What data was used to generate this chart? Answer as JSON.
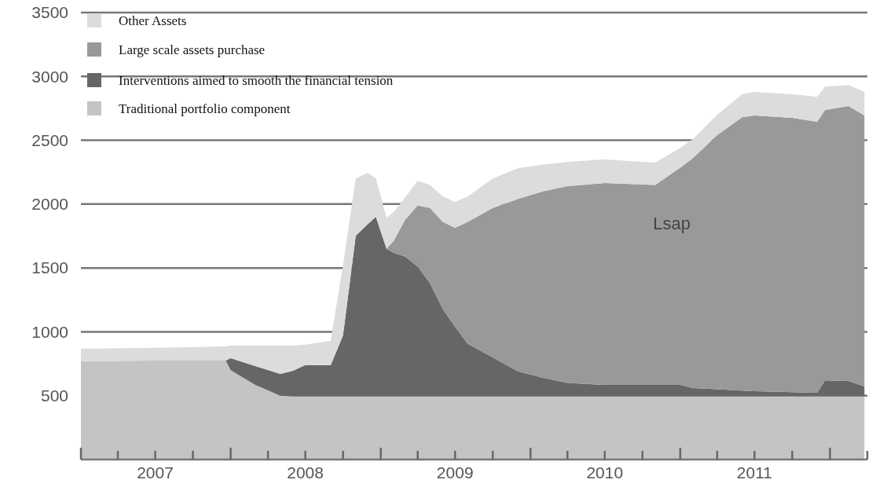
{
  "chart_data": {
    "type": "area",
    "stacked": true,
    "grid": "y",
    "legend": "top left",
    "x": [
      "2007-01-01",
      "2007-07-01",
      "2007-12-20",
      "2008-01-01",
      "2008-03-01",
      "2008-05-01",
      "2008-06-01",
      "2008-07-01",
      "2008-09-01",
      "2008-10-01",
      "2008-11-01",
      "2008-12-01",
      "2008-12-20",
      "2009-01-15",
      "2009-02-01",
      "2009-03-01",
      "2009-04-01",
      "2009-05-01",
      "2009-06-01",
      "2009-07-01",
      "2009-08-01",
      "2009-10-01",
      "2009-12-01",
      "2010-02-01",
      "2010-04-01",
      "2010-07-01",
      "2010-11-01",
      "2011-01-01",
      "2011-02-01",
      "2011-04-01",
      "2011-06-01",
      "2011-07-01",
      "2011-10-01",
      "2011-12-01",
      "2011-12-20",
      "2012-02-15",
      "2012-03-25"
    ],
    "xlim": [
      "2007-01-01",
      "2012-04-01"
    ],
    "xticks": [
      {
        "value": "2007-01-01",
        "label": null
      },
      {
        "value": "2007-04-01",
        "label": null
      },
      {
        "value": "2007-07-01",
        "label": "2007"
      },
      {
        "value": "2007-10-01",
        "label": null
      },
      {
        "value": "2008-01-01",
        "label": null
      },
      {
        "value": "2008-04-01",
        "label": null
      },
      {
        "value": "2008-07-01",
        "label": "2008"
      },
      {
        "value": "2008-10-01",
        "label": null
      },
      {
        "value": "2009-01-01",
        "label": null
      },
      {
        "value": "2009-04-01",
        "label": null
      },
      {
        "value": "2009-07-01",
        "label": "2009"
      },
      {
        "value": "2009-10-01",
        "label": null
      },
      {
        "value": "2010-01-01",
        "label": null
      },
      {
        "value": "2010-04-01",
        "label": null
      },
      {
        "value": "2010-07-01",
        "label": "2010"
      },
      {
        "value": "2010-10-01",
        "label": null
      },
      {
        "value": "2011-01-01",
        "label": null
      },
      {
        "value": "2011-04-01",
        "label": null
      },
      {
        "value": "2011-07-01",
        "label": "2011"
      },
      {
        "value": "2011-10-01",
        "label": null
      },
      {
        "value": "2012-01-01",
        "label": null
      },
      {
        "value": "2012-04-01",
        "label": null
      }
    ],
    "ylim": [
      0,
      3500
    ],
    "yticks": [
      500,
      1000,
      1500,
      2000,
      2500,
      3000,
      3500
    ],
    "series": [
      {
        "name": "Traditional portfolio component",
        "color": "#c4c4c4",
        "values": [
          770,
          775,
          775,
          700,
          584,
          500,
          495,
          495,
          495,
          495,
          495,
          495,
          495,
          495,
          495,
          495,
          495,
          495,
          495,
          495,
          495,
          495,
          495,
          495,
          495,
          495,
          495,
          495,
          495,
          495,
          495,
          495,
          495,
          495,
          495,
          495,
          495
        ]
      },
      {
        "name": "Interventions aimed to smooth the financial tension",
        "color": "#666666",
        "values": [
          0,
          0,
          0,
          93,
          148,
          170,
          200,
          245,
          245,
          477,
          1258,
          1350,
          1405,
          1155,
          1125,
          1095,
          1015,
          885,
          685,
          545,
          410,
          305,
          195,
          145,
          105,
          89,
          89,
          89,
          65,
          55,
          45,
          40,
          32,
          28,
          125,
          120,
          77
        ]
      },
      {
        "name": "Large scale assets purchase",
        "color": "#999999",
        "values": [
          0,
          0,
          0,
          0,
          0,
          0,
          0,
          0,
          0,
          0,
          0,
          0,
          0,
          0,
          90,
          286,
          480,
          590,
          680,
          774,
          955,
          1170,
          1350,
          1460,
          1540,
          1581,
          1566,
          1701,
          1800,
          1990,
          2140,
          2159,
          2148,
          2122,
          2117,
          2153,
          2122
        ]
      },
      {
        "name": "Other Assets",
        "color": "#dcdcdc",
        "values": [
          97,
          100,
          110,
          99,
          160,
          222,
          197,
          160,
          190,
          553,
          449,
          400,
          300,
          245,
          227,
          174,
          193,
          180,
          200,
          203,
          200,
          230,
          240,
          210,
          190,
          185,
          175,
          155,
          150,
          160,
          180,
          184,
          185,
          196,
          184,
          165,
          184
        ]
      }
    ],
    "annotations": [
      "Lsap"
    ]
  }
}
